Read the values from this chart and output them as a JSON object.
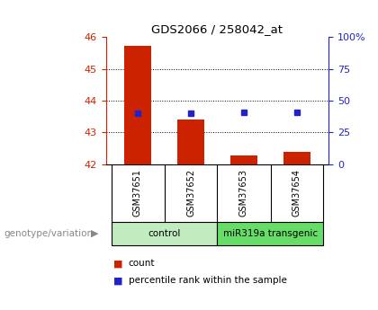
{
  "title": "GDS2066 / 258042_at",
  "samples": [
    "GSM37651",
    "GSM37652",
    "GSM37653",
    "GSM37654"
  ],
  "red_values": [
    45.72,
    43.42,
    42.28,
    42.38
  ],
  "blue_percentiles": [
    40,
    40,
    41,
    41
  ],
  "ylim_left": [
    42,
    46
  ],
  "ylim_right": [
    0,
    100
  ],
  "yticks_left": [
    42,
    43,
    44,
    45,
    46
  ],
  "yticks_right": [
    0,
    25,
    50,
    75,
    100
  ],
  "ytick_labels_right": [
    "0",
    "25",
    "50",
    "75",
    "100%"
  ],
  "groups": [
    {
      "label": "control",
      "samples": [
        0,
        1
      ],
      "color": "#c0ecc0"
    },
    {
      "label": "miR319a transgenic",
      "samples": [
        2,
        3
      ],
      "color": "#66dd66"
    }
  ],
  "bar_color": "#cc2200",
  "dot_color": "#2222cc",
  "bar_width": 0.5,
  "left_axis_color": "#cc2200",
  "right_axis_color": "#2222cc",
  "background_plot": "#ffffff",
  "background_label": "#cccccc",
  "legend_count_label": "count",
  "legend_percentile_label": "percentile rank within the sample",
  "genotype_label": "genotype/variation"
}
